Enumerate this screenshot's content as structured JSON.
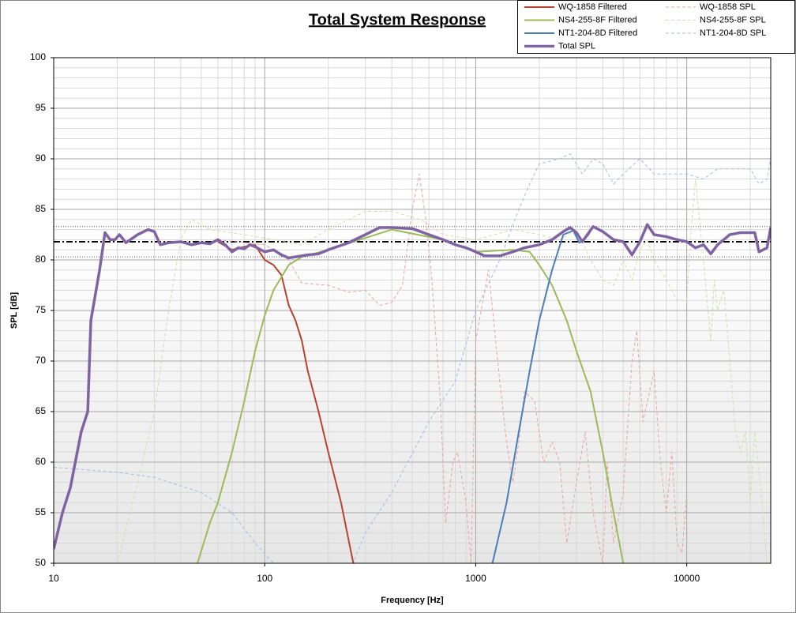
{
  "chart_data": {
    "type": "line",
    "title": "Total System Response",
    "x_label": "Frequency [Hz]",
    "y_label": "SPL [dB]",
    "x_log": true,
    "xlim": [
      10,
      25000
    ],
    "ylim": [
      50,
      100
    ],
    "xticks": [
      10,
      100,
      1000,
      10000
    ],
    "yticks": [
      50,
      55,
      60,
      65,
      70,
      75,
      80,
      85,
      90,
      95,
      100
    ],
    "grid": true,
    "minor_grid": true,
    "legend": "top-right",
    "reference_lines": [
      {
        "value": 81.8,
        "style": "dashdot"
      },
      {
        "value": 83.3,
        "style": "dotted"
      },
      {
        "value": 80.3,
        "style": "dotted"
      }
    ],
    "series": [
      {
        "name": "WQ-1858 Filtered",
        "color": "#b5432e",
        "dash": "solid",
        "width": 2,
        "x": [
          60,
          70,
          80,
          90,
          100,
          110,
          120,
          130,
          140,
          150,
          160,
          180,
          200,
          230,
          260,
          270
        ],
        "values": [
          81.8,
          81,
          81.3,
          81.5,
          80,
          79.5,
          78.5,
          75.5,
          74,
          72,
          69,
          65,
          61,
          56,
          50.5,
          49
        ]
      },
      {
        "name": "NS4-255-8F Filtered",
        "color": "#9bbb59",
        "dash": "solid",
        "width": 2,
        "x": [
          48,
          55,
          60,
          70,
          80,
          90,
          100,
          110,
          130,
          150,
          200,
          400,
          700,
          1000,
          1500,
          1800,
          2000,
          2300,
          2700,
          3000,
          3500,
          4000,
          4500,
          5000,
          5200
        ],
        "values": [
          50,
          54,
          56,
          61,
          66,
          71,
          74.5,
          77,
          79.5,
          80.3,
          81,
          83,
          82,
          80.8,
          81,
          80.8,
          79.5,
          77.5,
          74,
          71,
          67,
          61,
          55,
          50,
          48
        ]
      },
      {
        "name": "NT1-204-8D Filtered",
        "color": "#4a7ebb",
        "dash": "solid",
        "width": 2,
        "x": [
          1200,
          1400,
          1600,
          1800,
          2000,
          2300,
          2600,
          2900,
          3100,
          3400,
          3600
        ],
        "values": [
          50,
          56,
          63,
          69,
          74,
          79,
          82.5,
          82.9,
          81.7,
          82.4,
          83.3
        ]
      },
      {
        "name": "Total SPL",
        "color": "#8064a2",
        "dash": "solid",
        "width": 3.5,
        "x": [
          10,
          11,
          12,
          13.5,
          14.5,
          15,
          16.5,
          17.5,
          18.5,
          19.5,
          20.5,
          22,
          25,
          28,
          30,
          32,
          35,
          40,
          45,
          50,
          55,
          60,
          65,
          70,
          75,
          80,
          85,
          90,
          100,
          110,
          120,
          130,
          140,
          160,
          180,
          200,
          250,
          300,
          350,
          400,
          500,
          600,
          700,
          800,
          900,
          1000,
          1100,
          1300,
          1500,
          1700,
          2000,
          2300,
          2600,
          2800,
          3000,
          3200,
          3600,
          4000,
          4500,
          5000,
          5500,
          6000,
          6500,
          7000,
          8000,
          9000,
          10000,
          11000,
          12000,
          13000,
          14000,
          16000,
          18000,
          21000,
          22000,
          24000,
          25000
        ],
        "values": [
          51.4,
          55,
          57.5,
          63,
          65,
          74,
          79,
          82.7,
          82,
          82,
          82.5,
          81.7,
          82.5,
          83,
          82.8,
          81.5,
          81.7,
          81.8,
          81.5,
          81.7,
          81.6,
          82,
          81.5,
          80.8,
          81.2,
          81.1,
          81.5,
          81.3,
          80.8,
          81,
          80.5,
          80.2,
          80.3,
          80.5,
          80.6,
          81,
          81.7,
          82.5,
          83.2,
          83.2,
          83.1,
          82.5,
          82,
          81.5,
          81.2,
          80.8,
          80.4,
          80.4,
          80.8,
          81.2,
          81.5,
          82,
          82.8,
          83.2,
          82.7,
          81.8,
          83.3,
          82.8,
          82,
          81.8,
          80.5,
          81.8,
          83.5,
          82.5,
          82.3,
          82,
          81.8,
          81.2,
          81.5,
          80.6,
          81.5,
          82.5,
          82.7,
          82.7,
          80.8,
          81.2,
          83.2
        ]
      },
      {
        "name": "WQ-1858 SPL",
        "color": "#e8a3a3",
        "dash": "dashed",
        "width": 1,
        "x": [
          60,
          100,
          130,
          150,
          200,
          250,
          300,
          350,
          400,
          450,
          500,
          540,
          580,
          620,
          680,
          720,
          780,
          820,
          900,
          950,
          1000,
          1150,
          1300,
          1400,
          1500,
          1600,
          1700,
          1900,
          2100,
          2300,
          2500,
          2700,
          3000,
          3300,
          3600,
          4000,
          4200,
          4500,
          5000,
          5500,
          5800,
          6200,
          7000,
          7500,
          8000,
          8500,
          9000,
          9500,
          10000
        ],
        "values": [
          82,
          81.5,
          80,
          77.7,
          77.5,
          76.8,
          77,
          75.5,
          75.8,
          77.5,
          85,
          88.5,
          84,
          78,
          66,
          54,
          60,
          61,
          56,
          50,
          72,
          79,
          68,
          62,
          58,
          62,
          67,
          66,
          60,
          62,
          60,
          52,
          58,
          63,
          55,
          50,
          60,
          52,
          57,
          70,
          73,
          64,
          69,
          60,
          55,
          61,
          52,
          51,
          57
        ]
      },
      {
        "name": "NS4-255-8F SPL",
        "color": "#cfe0a8",
        "dash": "dashed",
        "width": 1,
        "x": [
          20,
          25,
          30,
          35,
          40,
          45,
          55,
          80,
          150,
          200,
          300,
          400,
          550,
          700,
          1000,
          1500,
          2000,
          2500,
          3000,
          3500,
          4000,
          4500,
          5000,
          5500,
          6000,
          6500,
          7000,
          8000,
          9000,
          10000,
          10500,
          11000,
          12000,
          13000,
          13500,
          14000,
          15000,
          16000,
          17000,
          18000,
          19000,
          20000,
          21000,
          23000,
          24000
        ],
        "values": [
          50,
          58,
          65,
          75,
          82,
          84,
          83,
          82.5,
          81.5,
          83,
          84.8,
          84.8,
          84,
          82.5,
          82,
          83,
          82.5,
          82,
          83,
          80,
          78,
          77.5,
          80,
          78,
          81,
          82,
          80,
          78,
          76,
          76,
          83,
          88,
          80,
          72,
          78,
          75,
          77,
          70,
          63,
          61,
          63,
          56,
          63,
          55,
          50
        ]
      },
      {
        "name": "NT1-204-8D SPL",
        "color": "#a8bce0",
        "dash": "dashed",
        "width": 1,
        "x": [
          10,
          20,
          30,
          50,
          70,
          90,
          110,
          130,
          250,
          300,
          400,
          600,
          800,
          1000,
          1300,
          1600,
          1800,
          2000,
          2500,
          2800,
          3200,
          3600,
          4000,
          4500,
          5000,
          6000,
          7000,
          8000,
          10000,
          12000,
          14000,
          16000,
          20000,
          22000,
          24000,
          25000
        ],
        "values": [
          59.5,
          59,
          58.5,
          57,
          55,
          52,
          50,
          48,
          49,
          53,
          57,
          64,
          68,
          75,
          80,
          85,
          87.5,
          89.5,
          90,
          90.5,
          88.5,
          90,
          89.5,
          87.5,
          88.5,
          90,
          88.5,
          88.5,
          88.5,
          88,
          89,
          89,
          89,
          87.5,
          88,
          90
        ]
      }
    ]
  }
}
